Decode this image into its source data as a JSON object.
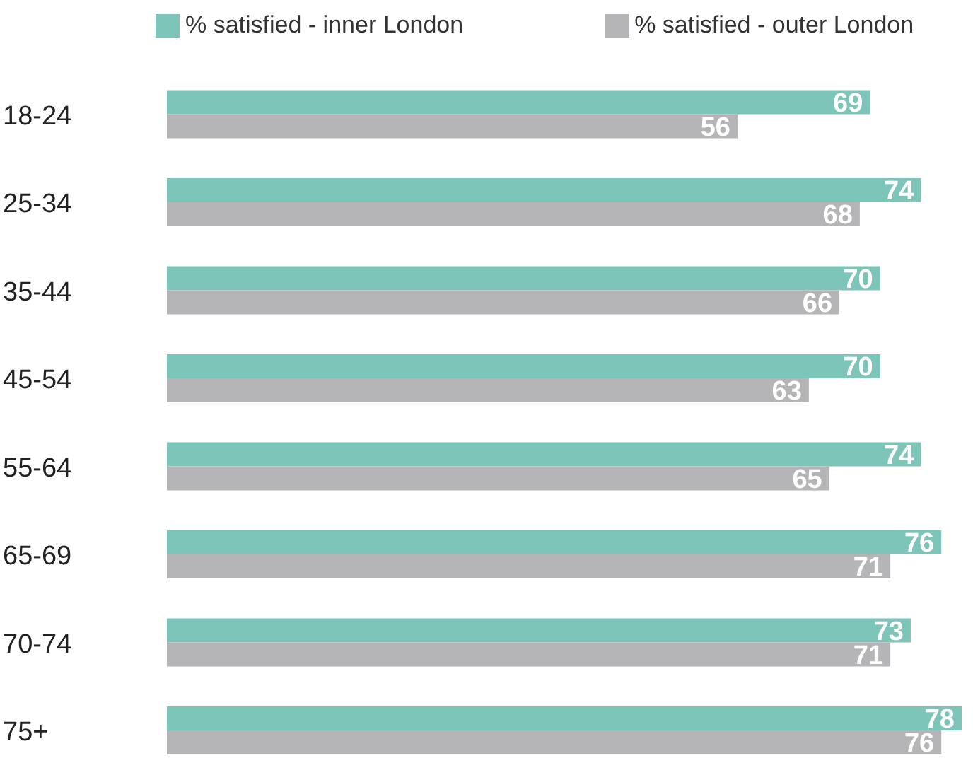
{
  "chart_data": {
    "type": "bar",
    "orientation": "horizontal",
    "categories": [
      "18-24",
      "25-34",
      "35-44",
      "45-54",
      "55-64",
      "65-69",
      "70-74",
      "75+"
    ],
    "series": [
      {
        "name": "% satisfied - inner London",
        "color": "#7dc4b9",
        "values": [
          69,
          74,
          70,
          70,
          74,
          76,
          73,
          78
        ]
      },
      {
        "name": "% satisfied - outer London",
        "color": "#b5b5b7",
        "values": [
          56,
          68,
          66,
          63,
          65,
          71,
          71,
          76
        ]
      }
    ],
    "data_labels": true,
    "legend": "top",
    "grid": false,
    "tick_labels": "y"
  }
}
